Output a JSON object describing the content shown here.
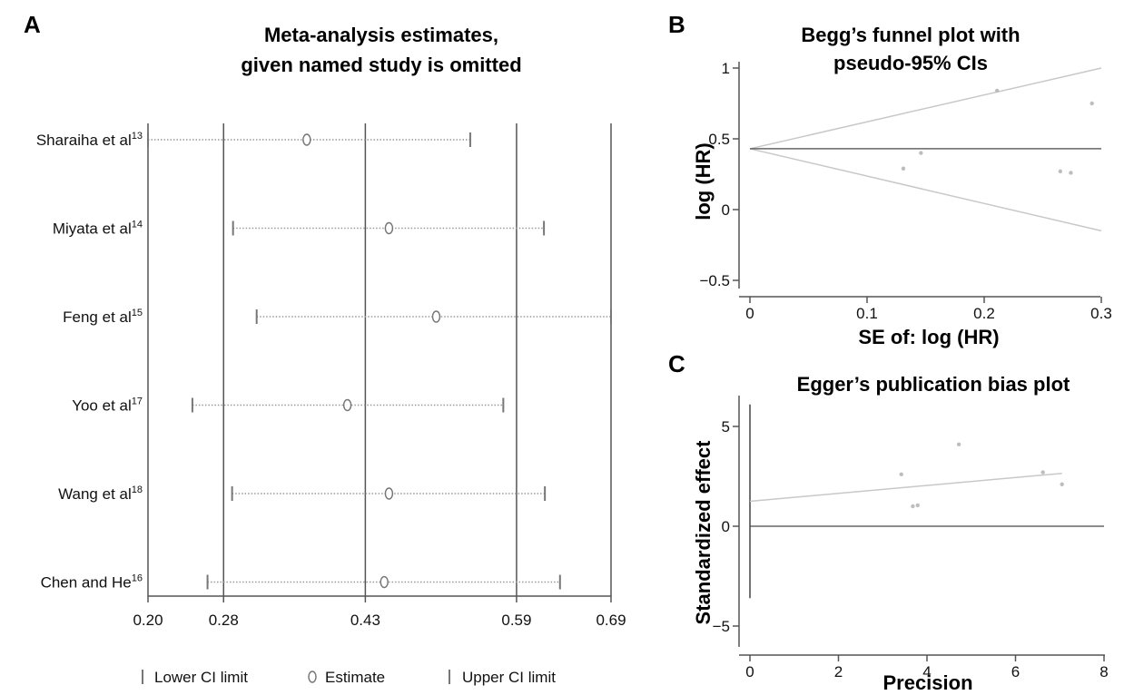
{
  "chart_data": [
    {
      "panel": "A",
      "type": "scatter",
      "title_lines": [
        "Meta-analysis estimates,",
        "given named study is omitted"
      ],
      "xlim": [
        0.2,
        0.69
      ],
      "xticks": [
        "0.20",
        "0.28",
        "0.43",
        "0.59",
        "0.69"
      ],
      "reference_lines": [
        0.28,
        0.43,
        0.59
      ],
      "studies": [
        {
          "name": "Sharaiha et al",
          "ref": "13",
          "lower": 0.2,
          "estimate": 0.368,
          "upper": 0.541
        },
        {
          "name": "Miyata et al",
          "ref": "14",
          "lower": 0.29,
          "estimate": 0.455,
          "upper": 0.619
        },
        {
          "name": "Feng et al",
          "ref": "15",
          "lower": 0.315,
          "estimate": 0.505,
          "upper": 0.69
        },
        {
          "name": "Yoo et al",
          "ref": "17",
          "lower": 0.247,
          "estimate": 0.411,
          "upper": 0.576
        },
        {
          "name": "Wang et al",
          "ref": "18",
          "lower": 0.289,
          "estimate": 0.455,
          "upper": 0.62
        },
        {
          "name": "Chen and He",
          "ref": "16",
          "lower": 0.263,
          "estimate": 0.45,
          "upper": 0.636
        }
      ],
      "legend": [
        "Lower CI limit",
        "Estimate",
        "Upper CI limit"
      ]
    },
    {
      "panel": "B",
      "type": "scatter",
      "title_lines": [
        "Begg’s funnel plot with",
        "pseudo-95% CIs"
      ],
      "xlabel": "SE of: log (HR)",
      "ylabel": "log (HR)",
      "xlim": [
        0,
        0.3
      ],
      "ylim": [
        -0.5,
        1
      ],
      "xticks": [
        "0",
        "0.1",
        "0.2",
        "0.3"
      ],
      "yticks": [
        "−0.5",
        "0",
        "0.5",
        "1"
      ],
      "pooled": 0.43,
      "funnel_upper_end": [
        0.3,
        1.0
      ],
      "funnel_lower_end": [
        0.3,
        -0.15
      ],
      "points": [
        {
          "x": 0.131,
          "y": 0.29
        },
        {
          "x": 0.146,
          "y": 0.4
        },
        {
          "x": 0.211,
          "y": 0.84
        },
        {
          "x": 0.265,
          "y": 0.27
        },
        {
          "x": 0.274,
          "y": 0.26
        },
        {
          "x": 0.292,
          "y": 0.75
        }
      ]
    },
    {
      "panel": "C",
      "type": "scatter",
      "title": "Egger’s publication bias plot",
      "xlabel": "Precision",
      "ylabel": "Standardized effect",
      "xlim": [
        0,
        8
      ],
      "ylim": [
        -5,
        6
      ],
      "xticks": [
        "0",
        "2",
        "4",
        "6",
        "8"
      ],
      "yticks": [
        "−5",
        "0",
        "5"
      ],
      "regression": {
        "x0": 0,
        "y0": 1.25,
        "x1": 7.05,
        "y1": 2.65
      },
      "ci_bar": {
        "x": 0,
        "ymin": -3.6,
        "ymax": 6.1
      },
      "points": [
        {
          "x": 3.42,
          "y": 2.6
        },
        {
          "x": 3.68,
          "y": 1.0
        },
        {
          "x": 3.79,
          "y": 1.05
        },
        {
          "x": 4.72,
          "y": 4.1
        },
        {
          "x": 6.62,
          "y": 2.7
        },
        {
          "x": 7.05,
          "y": 2.1
        }
      ]
    }
  ],
  "panel_letters": [
    "A",
    "B",
    "C"
  ],
  "colors": {
    "frame": "#555555",
    "light": "#c8c8c8",
    "marker": "#777777",
    "dotted": "#9a9a9a"
  }
}
